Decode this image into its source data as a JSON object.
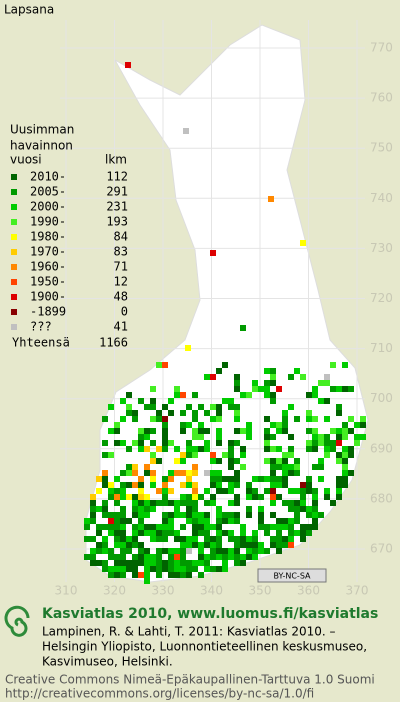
{
  "title": "Lapsana",
  "legend": {
    "heading": [
      "Uusimman",
      "havainnon"
    ],
    "col_headers": [
      "vuosi",
      "lkm"
    ],
    "items": [
      {
        "label": "2010-",
        "count": 112,
        "color": "#006400"
      },
      {
        "label": "2005-",
        "count": 291,
        "color": "#009a00"
      },
      {
        "label": "2000-",
        "count": 231,
        "color": "#00cc00"
      },
      {
        "label": "1990-",
        "count": 193,
        "color": "#44ee22"
      },
      {
        "label": "1980-",
        "count": 84,
        "color": "#ffff00"
      },
      {
        "label": "1970-",
        "count": 83,
        "color": "#ffcc00"
      },
      {
        "label": "1960-",
        "count": 71,
        "color": "#ff8800"
      },
      {
        "label": "1950-",
        "count": 12,
        "color": "#ff4400"
      },
      {
        "label": "1900-",
        "count": 48,
        "color": "#dd0000"
      },
      {
        "label": "-1899",
        "count": 0,
        "color": "#880000"
      },
      {
        "label": "???",
        "count": 41,
        "color": "#c0c0c0"
      }
    ],
    "total_label": "Yhteensä",
    "total": 1166
  },
  "axes": {
    "y_labels": [
      770,
      760,
      750,
      740,
      730,
      720,
      710,
      700,
      690,
      680,
      670
    ],
    "x_labels": [
      310,
      320,
      330,
      340,
      350,
      360,
      370
    ]
  },
  "license_badge": "BY-NC-SA",
  "footer": {
    "site": "Kasviatlas 2010, www.luomus.fi/kasviatlas",
    "citation": [
      "Lampinen, R. & Lahti, T. 2011: Kasviatlas 2010. –",
      "Helsingin Yliopisto, Luonnontieteellinen keskusmuseo,",
      "Kasvimuseo, Helsinki."
    ],
    "license": [
      "Creative Commons Nimeä-Epäkaupallinen-Tarttuva 1.0 Suomi",
      "http://creativecommons.org/licenses/by-nc-sa/1.0/fi"
    ]
  }
}
